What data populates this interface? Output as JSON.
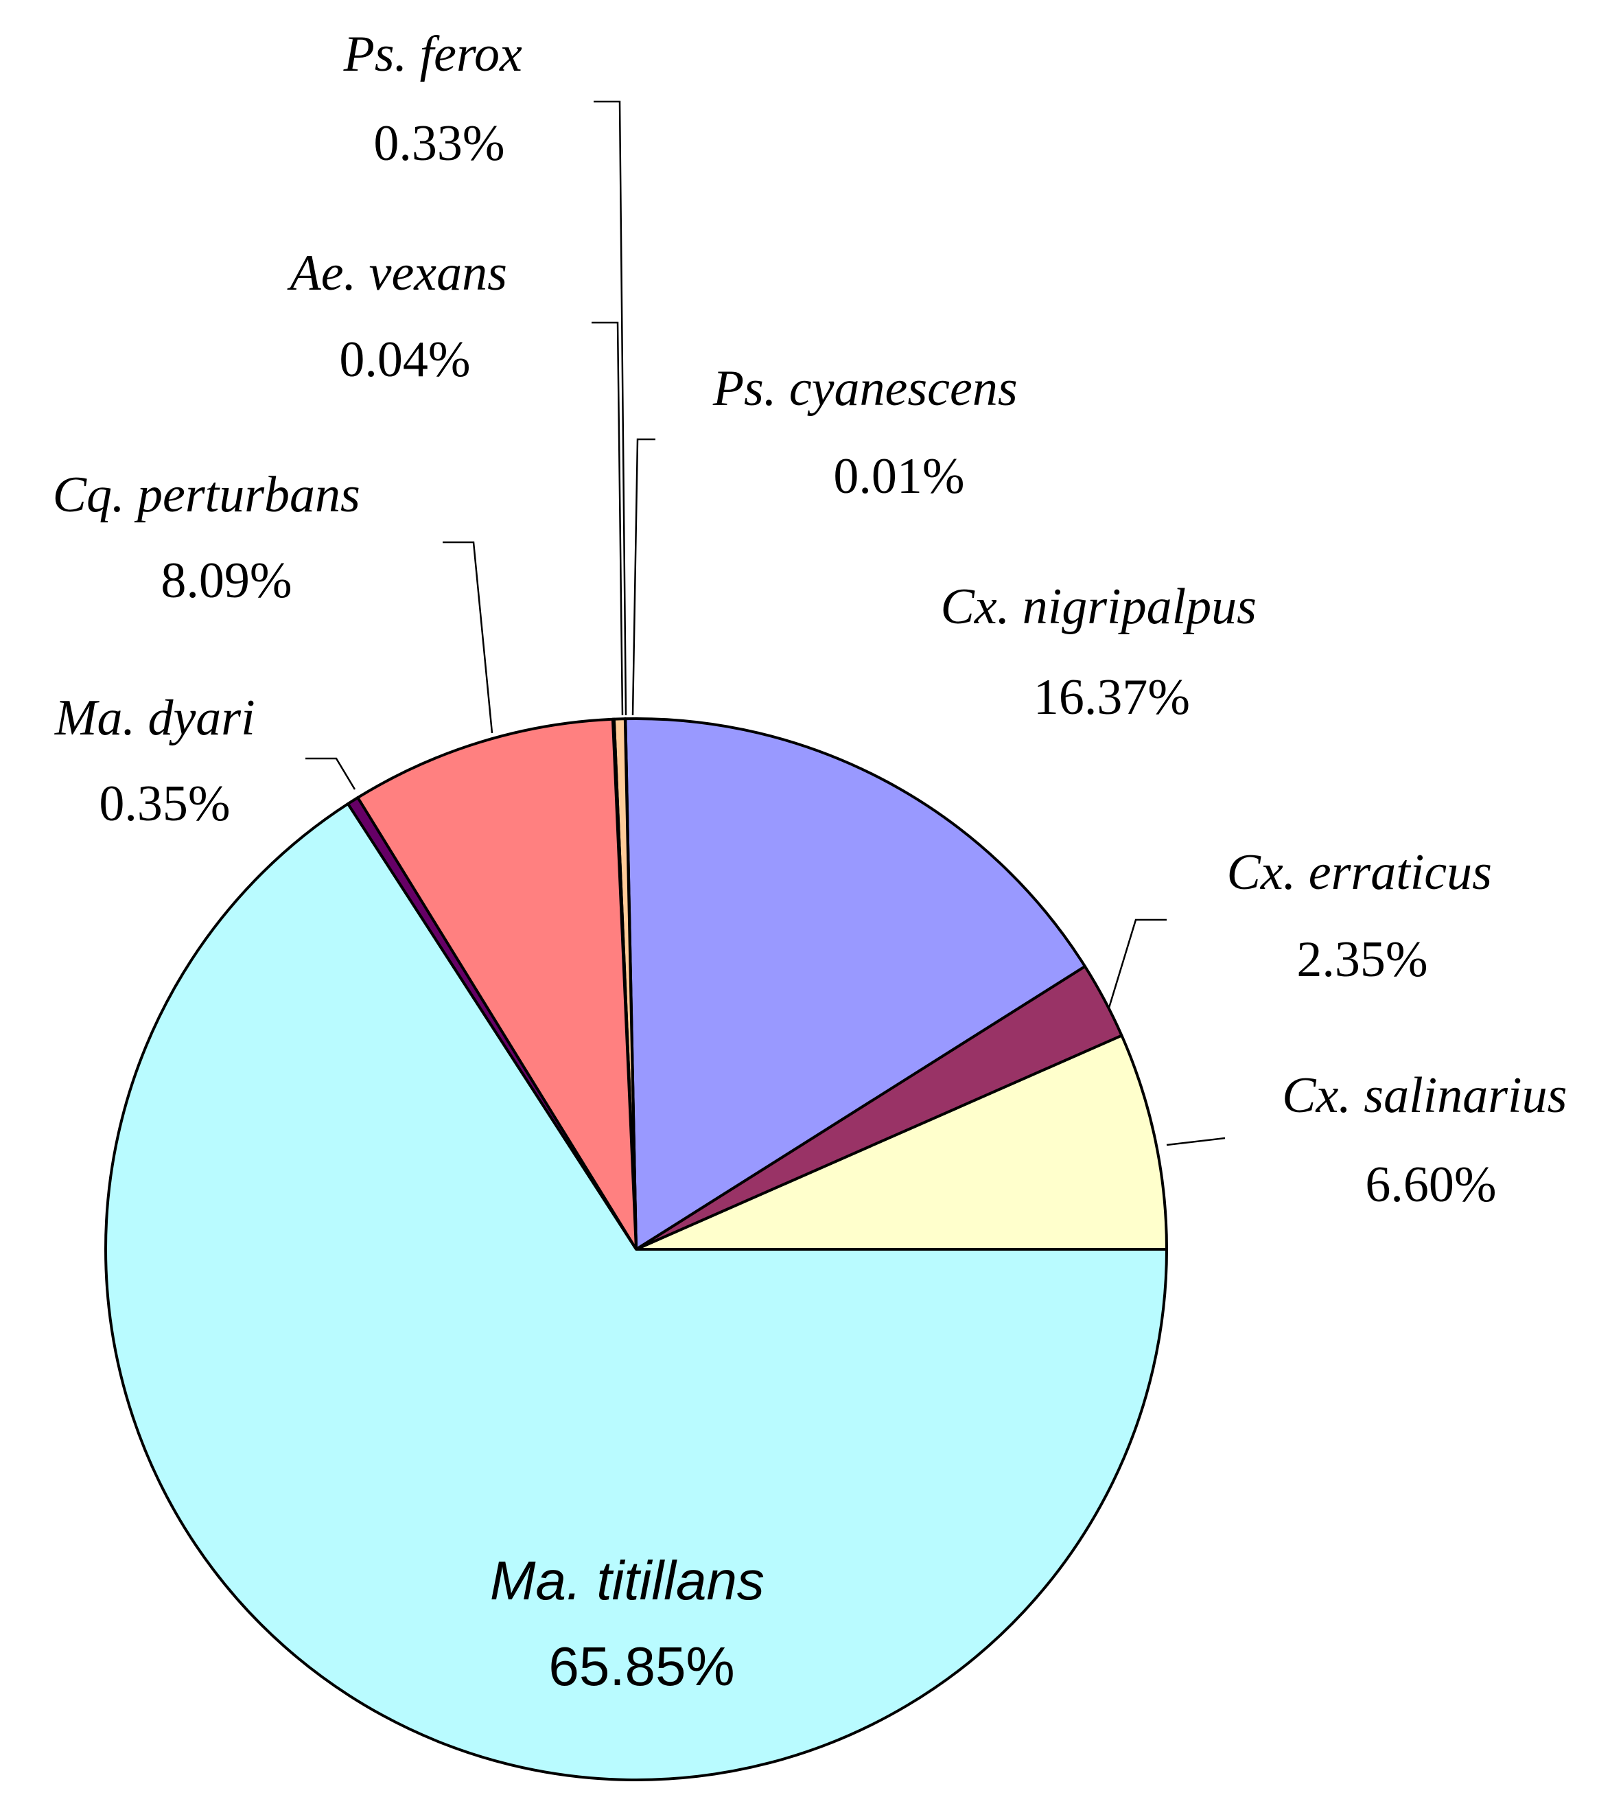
{
  "chart_data": {
    "type": "pie",
    "title": "",
    "start": "3 o'clock, counter-clockwise",
    "slices": [
      {
        "name": "Cx. salinarius",
        "value": 6.6,
        "label": "6.60%",
        "color": "#ffffcc"
      },
      {
        "name": "Cx. erraticus",
        "value": 2.35,
        "label": "2.35%",
        "color": "#993366"
      },
      {
        "name": "Cx. nigripalpus",
        "value": 16.37,
        "label": "16.37%",
        "color": "#9999ff"
      },
      {
        "name": "Ps. cyanescens",
        "value": 0.01,
        "label": "0.01%",
        "color": "#ccffcc"
      },
      {
        "name": "Ps. ferox",
        "value": 0.33,
        "label": "0.33%",
        "color": "#ffcc99"
      },
      {
        "name": "Ae. vexans",
        "value": 0.04,
        "label": "0.04%",
        "color": "#cc99ff"
      },
      {
        "name": "Cq. perturbans",
        "value": 8.09,
        "label": "8.09%",
        "color": "#ff8080"
      },
      {
        "name": "Ma. dyari",
        "value": 0.35,
        "label": "0.35%",
        "color": "#660066"
      },
      {
        "name": "Ma. titillans",
        "value": 65.85,
        "label": "65.85%",
        "color": "#b9fbff"
      }
    ]
  }
}
